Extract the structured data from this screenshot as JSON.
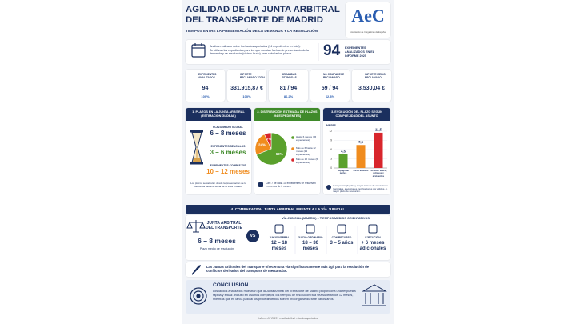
{
  "header": {
    "title_line1": "AGILIDAD DE LA JUNTA ARBITRAL",
    "title_line2": "DEL TRANSPORTE DE MADRID",
    "subtitle": "TIEMPOS ENTRE LA PRESENTACIÓN DE LA DEMANDA Y LA RESOLUCIÓN",
    "logo_text": "AeC",
    "logo_caption": "Asociación de Cargadores de España"
  },
  "intro": {
    "text1": "Análisis realizado sobre los laudos aportados (94 expedientes en total).",
    "text2": "Se utilizan los expedientes para los que constan fechas de presentación de la demanda y de resolución (vista o laudo) para calcular los plazos.",
    "number": "94",
    "number_label": "EXPEDIENTES ANALIZADOS EN EL INFORME 2025"
  },
  "stats": [
    {
      "label": "EXPEDIENTES ANALIZADOS",
      "value": "94",
      "percent": "100%"
    },
    {
      "label": "IMPORTE RECLAMADO TOTAL",
      "value": "331.915,87 €",
      "percent": "100%"
    },
    {
      "label": "DEMANDAS ESTIMADAS",
      "value": "81 / 94",
      "percent": "86,2%"
    },
    {
      "label": "NO COMPARECE RECLAMADO",
      "value": "59 / 94",
      "percent": "62,8%"
    },
    {
      "label": "IMPORTE MEDIO RECLAMADO",
      "value": "3.530,04 €"
    }
  ],
  "section1": {
    "title": "1. PLAZOS EN LA JUNTA ARBITRAL (ESTIMACIÓN GLOBAL)",
    "items": [
      {
        "label": "PLAZO MEDIO GLOBAL",
        "value": "6 – 8 meses"
      },
      {
        "label": "EXPEDIENTES SENCILLOS",
        "value": "3 – 6 meses"
      },
      {
        "label": "EXPEDIENTES COMPLEJOS",
        "value": "10 – 12 meses"
      }
    ],
    "note": "Los plazos se calculan desde la presentación de la demanda hasta la fecha de la vista o laudo."
  },
  "chart_data": [
    {
      "type": "pie",
      "title": "2. DISTRIBUCIÓN ESTIMADA DE PLAZOS (94 EXPEDIENTES)",
      "categories": [
        "Hasta 6 meses (65 expedientes)",
        "Más de 6 hasta 12 meses (23 expedientes)",
        "Más de 12 meses (6 expedientes)"
      ],
      "values": [
        69,
        24,
        7
      ],
      "value_labels": [
        "69%",
        "24%",
        "7%"
      ],
      "colors": [
        "#5aa02c",
        "#f08c1e",
        "#d8262c"
      ],
      "annotation": "Casi 7 de cada 10 expedientes se resuelven en menos de 6 meses."
    },
    {
      "type": "bar",
      "title": "3. EVOLUCIÓN DEL PLAZO SEGÚN COMPLEJIDAD DEL ASUNTO",
      "y_label": "MESES",
      "categories": [
        "Impago de portes",
        "Otros asuntos",
        "Pérdida / avería, retrasos y accidentes"
      ],
      "values": [
        4.5,
        7.5,
        11.5
      ],
      "value_labels": [
        "4,5",
        "7,5",
        "11,5"
      ],
      "colors": [
        "#5aa02c",
        "#f08c1e",
        "#d8262c"
      ],
      "ylim": [
        0,
        12
      ],
      "yticks": [
        0,
        3,
        6,
        9,
        12
      ],
      "grid": true,
      "annotation": "A mayor complejidad y mayor número de actuaciones (periciales, alegaciones, notificaciones por edictos...), mayor plazo de resolución."
    }
  ],
  "section4": {
    "title": "4. COMPARATIVA: JUNTA ARBITRAL FRENTE A LA VÍA JUDICIAL",
    "left_title": "JUNTA ARBITRAL DEL TRANSPORTE",
    "left_value": "6 – 8 meses",
    "left_caption": "Plazo medio de resolución",
    "vs": "VS",
    "right_title": "VÍA JUDICIAL (MADRID) – TIEMPOS MEDIOS ORIENTATIVOS",
    "items": [
      {
        "label": "JUICIO VERBAL",
        "value": "12 – 18 meses"
      },
      {
        "label": "JUICIO ORDINARIO",
        "value": "18 – 30 meses"
      },
      {
        "label": "CON RECURSO",
        "value": "3 – 5 años"
      },
      {
        "label": "EJECUCIÓN",
        "value": "+ 6 meses adicionales"
      }
    ]
  },
  "banner": "Las Juntas Arbitrales del Transporte ofrecen una vía significativamente más ágil para la resolución de conflictos derivados del transporte de mercancías.",
  "conclusion": {
    "title": "CONCLUSIÓN",
    "text": "Los laudos analizados muestran que la Junta Arbitral del Transporte de Madrid proporciona una respuesta rápida y eficaz. Incluso en asuntos complejos, los tiempos de resolución rara vez superan los 12 meses, mientras que en la vía judicial los procedimientos suelen prolongarse durante varios años."
  },
  "footer": "Informe AT 2025 · resultado final – laudos aportados"
}
